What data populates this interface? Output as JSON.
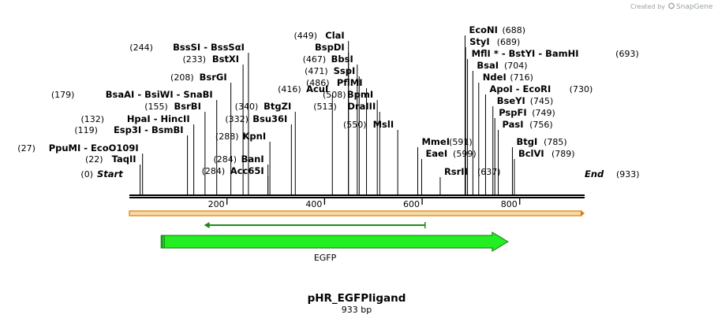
{
  "header": {
    "credit_prefix": "Created by",
    "credit_brand": "SnapGene"
  },
  "plasmid": {
    "name": "pHR_EGFPligand",
    "length_label": "933 bp",
    "length_bp": 933
  },
  "ends": {
    "start": {
      "label": "Start",
      "pos_label": "(0)"
    },
    "end": {
      "label": "End",
      "pos_label": "(933)"
    }
  },
  "ruler": {
    "ticks": [
      200,
      400,
      600,
      800
    ]
  },
  "features": [
    {
      "name": "EGFP",
      "start": 65,
      "end": 776,
      "color": "#22ee22",
      "outline": "#117711"
    }
  ],
  "orf": {
    "start": 153,
    "end": 606,
    "color": "#1a8a1a"
  },
  "sequence_bar": {
    "fill": "#f6d9a6",
    "stroke": "#e07b00"
  },
  "sites": [
    {
      "label": "TaqII",
      "pos": 22,
      "pos_label": "(22)"
    },
    {
      "label": "PpuMI  - EcoO109I",
      "pos": 27,
      "pos_label": "(27)"
    },
    {
      "label": "Esp3I  - BsmBI",
      "pos": 119,
      "pos_label": "(119)"
    },
    {
      "label": "HpaI  - HincII",
      "pos": 132,
      "pos_label": "(132)"
    },
    {
      "label": "BsrBI",
      "pos": 155,
      "pos_label": "(155)"
    },
    {
      "label": "BsaAI  - BsiWI  - SnaBI",
      "pos": 179,
      "pos_label": "(179)"
    },
    {
      "label": "BsrGI",
      "pos": 208,
      "pos_label": "(208)"
    },
    {
      "label": "BstXI",
      "pos": 233,
      "pos_label": "(233)"
    },
    {
      "label": "BssSI  - BssSαI",
      "pos": 244,
      "pos_label": "(244)"
    },
    {
      "label": "Acc65I",
      "pos": 284,
      "pos_label": "(284)"
    },
    {
      "label": "BanI",
      "pos": 284,
      "pos_label": "(284)"
    },
    {
      "label": "KpnI",
      "pos": 288,
      "pos_label": "(288)"
    },
    {
      "label": "Bsu36I",
      "pos": 332,
      "pos_label": "(332)"
    },
    {
      "label": "BtgZI",
      "pos": 340,
      "pos_label": "(340)"
    },
    {
      "label": "AcuI",
      "pos": 416,
      "pos_label": "(416)"
    },
    {
      "label": "BspDI",
      "pos": 449,
      "pos_label": ""
    },
    {
      "label": "ClaI",
      "pos": 449,
      "pos_label": "(449)"
    },
    {
      "label": "BbsI",
      "pos": 467,
      "pos_label": "(467)"
    },
    {
      "label": "SspI",
      "pos": 471,
      "pos_label": "(471)"
    },
    {
      "label": "PflMI",
      "pos": 486,
      "pos_label": "(486)"
    },
    {
      "label": "BpmI",
      "pos": 508,
      "pos_label": "(508)"
    },
    {
      "label": "DraIII",
      "pos": 513,
      "pos_label": "(513)"
    },
    {
      "label": "MslI",
      "pos": 550,
      "pos_label": "(550)"
    },
    {
      "label": "MmeI",
      "pos": 591,
      "pos_label": "(591)"
    },
    {
      "label": "EaeI",
      "pos": 599,
      "pos_label": "(599)"
    },
    {
      "label": "RsrII",
      "pos": 637,
      "pos_label": "(637)"
    },
    {
      "label": "EcoNI",
      "pos": 688,
      "pos_label": "(688)"
    },
    {
      "label": "StyI",
      "pos": 689,
      "pos_label": "(689)"
    },
    {
      "label": "MflI *  - BstYI  - BamHI",
      "pos": 693,
      "pos_label": "(693)"
    },
    {
      "label": "BsaI",
      "pos": 704,
      "pos_label": "(704)"
    },
    {
      "label": "NdeI",
      "pos": 716,
      "pos_label": "(716)"
    },
    {
      "label": "ApoI  - EcoRI",
      "pos": 730,
      "pos_label": "(730)"
    },
    {
      "label": "BseYI",
      "pos": 745,
      "pos_label": "(745)"
    },
    {
      "label": "PspFI",
      "pos": 749,
      "pos_label": "(749)"
    },
    {
      "label": "PasI",
      "pos": 756,
      "pos_label": "(756)"
    },
    {
      "label": "BtgI",
      "pos": 785,
      "pos_label": "(785)"
    },
    {
      "label": "BclVI",
      "pos": 789,
      "pos_label": "(789)"
    }
  ]
}
